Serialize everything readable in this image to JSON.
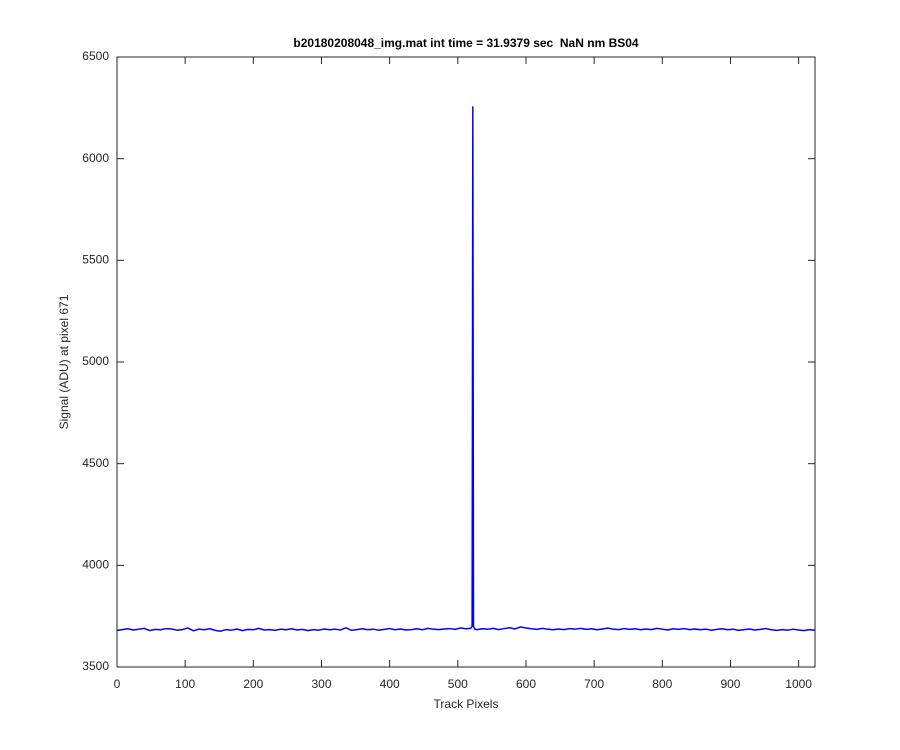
{
  "chart_data": {
    "type": "line",
    "title": "b20180208048_img.mat int time = 31.9379 sec  NaN nm BS04",
    "x_label": "Track Pixels",
    "y_label": "Signal (ADU) at pixel 671",
    "color": "#0000ff",
    "xlim": [
      0,
      1024
    ],
    "xticks": [
      0,
      100,
      200,
      300,
      400,
      500,
      600,
      700,
      800,
      900,
      1000
    ],
    "ylim": [
      3500,
      6500
    ],
    "yticks": [
      3500,
      4000,
      4500,
      5000,
      5500,
      6000,
      6500
    ],
    "grid": false,
    "x": [
      0,
      8,
      16,
      24,
      32,
      40,
      48,
      56,
      64,
      72,
      80,
      88,
      96,
      104,
      112,
      120,
      128,
      136,
      144,
      152,
      160,
      168,
      176,
      184,
      192,
      200,
      208,
      216,
      224,
      232,
      240,
      248,
      256,
      264,
      272,
      280,
      288,
      296,
      304,
      312,
      320,
      328,
      336,
      344,
      352,
      360,
      368,
      376,
      384,
      392,
      400,
      408,
      416,
      424,
      432,
      440,
      448,
      456,
      464,
      472,
      480,
      488,
      496,
      504,
      512,
      519,
      521,
      522,
      523,
      525,
      528,
      536,
      544,
      552,
      560,
      568,
      576,
      584,
      592,
      600,
      608,
      616,
      624,
      632,
      640,
      648,
      656,
      664,
      672,
      680,
      688,
      696,
      704,
      712,
      720,
      728,
      736,
      744,
      752,
      760,
      768,
      776,
      784,
      792,
      800,
      808,
      816,
      824,
      832,
      840,
      848,
      856,
      864,
      872,
      880,
      888,
      896,
      904,
      912,
      920,
      928,
      936,
      944,
      952,
      960,
      968,
      976,
      984,
      992,
      1000,
      1008,
      1016,
      1024
    ],
    "values": [
      3680,
      3684,
      3688,
      3682,
      3686,
      3690,
      3679,
      3685,
      3683,
      3689,
      3687,
      3681,
      3684,
      3692,
      3678,
      3686,
      3683,
      3688,
      3680,
      3676,
      3684,
      3681,
      3687,
      3679,
      3685,
      3683,
      3690,
      3682,
      3684,
      3680,
      3686,
      3683,
      3688,
      3682,
      3685,
      3679,
      3684,
      3681,
      3687,
      3683,
      3686,
      3682,
      3693,
      3680,
      3684,
      3688,
      3683,
      3686,
      3681,
      3685,
      3689,
      3683,
      3687,
      3682,
      3684,
      3688,
      3683,
      3690,
      3686,
      3684,
      3687,
      3689,
      3685,
      3692,
      3688,
      3690,
      3700,
      6255,
      3700,
      3686,
      3684,
      3688,
      3686,
      3690,
      3684,
      3689,
      3693,
      3687,
      3697,
      3692,
      3688,
      3685,
      3690,
      3686,
      3683,
      3687,
      3684,
      3689,
      3686,
      3690,
      3685,
      3688,
      3683,
      3687,
      3691,
      3686,
      3684,
      3689,
      3685,
      3688,
      3683,
      3687,
      3684,
      3690,
      3686,
      3682,
      3688,
      3685,
      3689,
      3684,
      3687,
      3683,
      3686,
      3681,
      3685,
      3688,
      3683,
      3686,
      3680,
      3684,
      3687,
      3682,
      3685,
      3689,
      3683,
      3680,
      3684,
      3681,
      3686,
      3682,
      3679,
      3684,
      3680
    ]
  }
}
